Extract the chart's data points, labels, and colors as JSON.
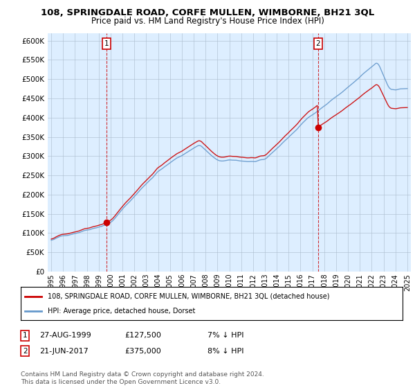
{
  "title": "108, SPRINGDALE ROAD, CORFE MULLEN, WIMBORNE, BH21 3QL",
  "subtitle": "Price paid vs. HM Land Registry's House Price Index (HPI)",
  "ylim": [
    0,
    620000
  ],
  "yticks": [
    0,
    50000,
    100000,
    150000,
    200000,
    250000,
    300000,
    350000,
    400000,
    450000,
    500000,
    550000,
    600000
  ],
  "x_start_year": 1995,
  "x_end_year": 2025,
  "line1_color": "#cc0000",
  "line2_color": "#6699cc",
  "plot_bg_color": "#ddeeff",
  "sale1_year": 1999.65,
  "sale1_price": 127500,
  "sale2_year": 2017.47,
  "sale2_price": 375000,
  "sale1_date": "27-AUG-1999",
  "sale2_date": "21-JUN-2017",
  "sale1_pct": "7%",
  "sale2_pct": "8%",
  "legend_label1": "108, SPRINGDALE ROAD, CORFE MULLEN, WIMBORNE, BH21 3QL (detached house)",
  "legend_label2": "HPI: Average price, detached house, Dorset",
  "footnote": "Contains HM Land Registry data © Crown copyright and database right 2024.\nThis data is licensed under the Open Government Licence v3.0.",
  "background_color": "#ffffff",
  "grid_color": "#aabbcc"
}
